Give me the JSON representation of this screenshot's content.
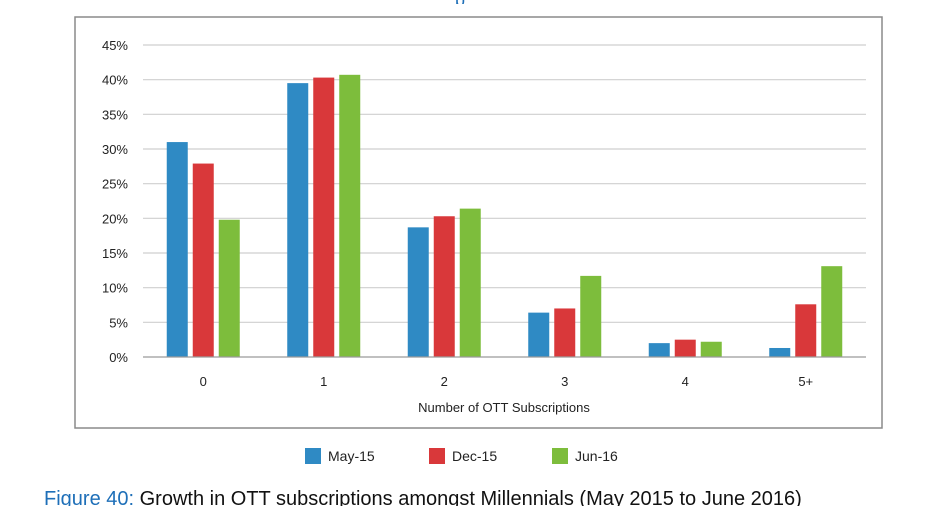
{
  "figure": {
    "top_title_fragment": "p",
    "caption_label": "Figure 40:",
    "caption_text": "Growth in OTT subscriptions amongst Millennials (May 2015 to June 2016)"
  },
  "chart_data": {
    "type": "bar",
    "categories": [
      "0",
      "1",
      "2",
      "3",
      "4",
      "5+"
    ],
    "series": [
      {
        "name": "May-15",
        "color": "#2f8ac4",
        "values": [
          31,
          39.5,
          18.7,
          6.4,
          2.0,
          1.3
        ]
      },
      {
        "name": "Dec-15",
        "color": "#d9383a",
        "values": [
          27.9,
          40.3,
          20.3,
          7.0,
          2.5,
          7.6
        ]
      },
      {
        "name": "Jun-16",
        "color": "#7dbd3c",
        "values": [
          19.8,
          40.7,
          21.4,
          11.7,
          2.2,
          13.1
        ]
      }
    ],
    "xlabel": "Number of OTT Subscriptions",
    "ylabel": "",
    "ylim": [
      0,
      45
    ],
    "yticks": [
      "0%",
      "5%",
      "10%",
      "15%",
      "20%",
      "25%",
      "30%",
      "35%",
      "40%",
      "45%"
    ],
    "grid": true,
    "legend_position": "bottom"
  }
}
